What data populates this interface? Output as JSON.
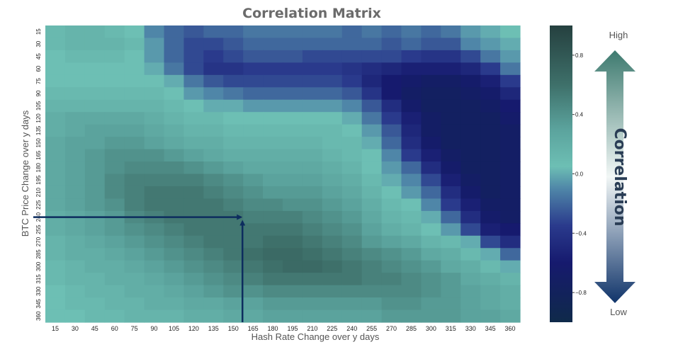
{
  "chart_data": {
    "type": "heatmap",
    "title": "Correlation Matrix",
    "xlabel": "Hash Rate Change over y days",
    "ylabel": "BTC Price Change over y days",
    "x_ticks": [
      15,
      30,
      45,
      60,
      75,
      90,
      105,
      120,
      135,
      150,
      165,
      180,
      195,
      210,
      225,
      240,
      255,
      270,
      285,
      300,
      315,
      330,
      345,
      360
    ],
    "y_ticks": [
      15,
      30,
      45,
      60,
      75,
      90,
      105,
      120,
      135,
      150,
      165,
      180,
      195,
      210,
      225,
      240,
      255,
      270,
      285,
      300,
      315,
      330,
      345,
      360
    ],
    "value_range": [
      -1,
      1
    ],
    "colorbar": {
      "label": "Correlation",
      "high_label": "High",
      "low_label": "Low",
      "ticks": [
        {
          "value": 0.8,
          "label": "0.8"
        },
        {
          "value": 0.4,
          "label": "0.4"
        },
        {
          "value": 0.0,
          "label": "0.0"
        },
        {
          "value": -0.4,
          "label": "−0.4"
        },
        {
          "value": -0.8,
          "label": "−0.8"
        }
      ],
      "stops": [
        {
          "value": -1.0,
          "color": "#0f2a4a"
        },
        {
          "value": -0.6,
          "color": "#161a6e"
        },
        {
          "value": -0.35,
          "color": "#2a3a8c"
        },
        {
          "value": -0.1,
          "color": "#4f86a8"
        },
        {
          "value": 0.05,
          "color": "#6dbfb4"
        },
        {
          "value": 0.3,
          "color": "#5ba39d"
        },
        {
          "value": 0.6,
          "color": "#3e706a"
        },
        {
          "value": 1.0,
          "color": "#25403f"
        }
      ]
    },
    "annotation": {
      "x": 157,
      "y": 240,
      "note": "arrows pointing to peak correlation"
    },
    "values": [
      [
        0.1,
        0.15,
        0.15,
        0.1,
        0.05,
        -0.1,
        -0.2,
        -0.25,
        -0.2,
        -0.2,
        -0.15,
        -0.15,
        -0.15,
        -0.15,
        -0.15,
        -0.2,
        -0.15,
        -0.2,
        -0.15,
        -0.2,
        -0.15,
        -0.05,
        0,
        0.05
      ],
      [
        0.1,
        0.15,
        0.15,
        0.15,
        0.1,
        -0.05,
        -0.2,
        -0.3,
        -0.3,
        -0.25,
        -0.2,
        -0.2,
        -0.2,
        -0.2,
        -0.2,
        -0.2,
        -0.2,
        -0.25,
        -0.2,
        -0.25,
        -0.25,
        -0.1,
        -0.05,
        0
      ],
      [
        0.05,
        0.1,
        0.1,
        0.1,
        0.05,
        -0.05,
        -0.2,
        -0.3,
        -0.35,
        -0.3,
        -0.25,
        -0.25,
        -0.25,
        -0.3,
        -0.3,
        -0.3,
        -0.3,
        -0.3,
        -0.35,
        -0.4,
        -0.4,
        -0.3,
        -0.15,
        -0.05
      ],
      [
        0.05,
        0.05,
        0.05,
        0.05,
        0.05,
        0,
        -0.15,
        -0.3,
        -0.4,
        -0.4,
        -0.35,
        -0.35,
        -0.35,
        -0.35,
        -0.35,
        -0.4,
        -0.45,
        -0.5,
        -0.55,
        -0.55,
        -0.55,
        -0.5,
        -0.35,
        -0.15
      ],
      [
        0.05,
        0.05,
        0.05,
        0.05,
        0.05,
        0.05,
        0,
        -0.15,
        -0.25,
        -0.3,
        -0.3,
        -0.3,
        -0.3,
        -0.3,
        -0.3,
        -0.35,
        -0.5,
        -0.6,
        -0.65,
        -0.7,
        -0.7,
        -0.65,
        -0.55,
        -0.35
      ],
      [
        0.1,
        0.1,
        0.1,
        0.1,
        0.1,
        0.1,
        0.05,
        -0.05,
        -0.1,
        -0.15,
        -0.2,
        -0.2,
        -0.2,
        -0.2,
        -0.2,
        -0.25,
        -0.4,
        -0.6,
        -0.7,
        -0.75,
        -0.75,
        -0.7,
        -0.65,
        -0.5
      ],
      [
        0.15,
        0.15,
        0.15,
        0.15,
        0.15,
        0.15,
        0.1,
        0.05,
        0,
        0,
        -0.05,
        -0.05,
        -0.05,
        -0.05,
        -0.05,
        -0.1,
        -0.25,
        -0.45,
        -0.65,
        -0.75,
        -0.75,
        -0.75,
        -0.7,
        -0.6
      ],
      [
        0.2,
        0.25,
        0.25,
        0.25,
        0.25,
        0.2,
        0.15,
        0.1,
        0.1,
        0.05,
        0.05,
        0.05,
        0.05,
        0.05,
        0.05,
        0,
        -0.15,
        -0.35,
        -0.55,
        -0.7,
        -0.75,
        -0.75,
        -0.75,
        -0.65
      ],
      [
        0.2,
        0.25,
        0.3,
        0.3,
        0.3,
        0.25,
        0.2,
        0.15,
        0.15,
        0.1,
        0.1,
        0.1,
        0.1,
        0.1,
        0.1,
        0.05,
        -0.05,
        -0.25,
        -0.5,
        -0.7,
        -0.75,
        -0.75,
        -0.75,
        -0.7
      ],
      [
        0.25,
        0.3,
        0.3,
        0.35,
        0.35,
        0.3,
        0.25,
        0.2,
        0.2,
        0.15,
        0.15,
        0.15,
        0.15,
        0.15,
        0.1,
        0.1,
        0,
        -0.2,
        -0.45,
        -0.65,
        -0.75,
        -0.75,
        -0.75,
        -0.7
      ],
      [
        0.25,
        0.3,
        0.35,
        0.4,
        0.4,
        0.4,
        0.35,
        0.3,
        0.25,
        0.2,
        0.2,
        0.2,
        0.2,
        0.2,
        0.15,
        0.1,
        0.05,
        -0.1,
        -0.35,
        -0.55,
        -0.7,
        -0.75,
        -0.75,
        -0.7
      ],
      [
        0.25,
        0.3,
        0.35,
        0.4,
        0.45,
        0.45,
        0.45,
        0.4,
        0.35,
        0.3,
        0.25,
        0.25,
        0.25,
        0.25,
        0.2,
        0.15,
        0.05,
        -0.05,
        -0.2,
        -0.45,
        -0.65,
        -0.75,
        -0.75,
        -0.7
      ],
      [
        0.25,
        0.3,
        0.35,
        0.45,
        0.5,
        0.5,
        0.5,
        0.5,
        0.45,
        0.4,
        0.35,
        0.3,
        0.3,
        0.3,
        0.25,
        0.2,
        0.1,
        0,
        -0.1,
        -0.3,
        -0.55,
        -0.7,
        -0.75,
        -0.7
      ],
      [
        0.25,
        0.3,
        0.35,
        0.45,
        0.5,
        0.55,
        0.55,
        0.55,
        0.5,
        0.45,
        0.4,
        0.35,
        0.35,
        0.35,
        0.3,
        0.25,
        0.15,
        0.05,
        -0.05,
        -0.2,
        -0.45,
        -0.65,
        -0.75,
        -0.7
      ],
      [
        0.25,
        0.3,
        0.35,
        0.4,
        0.5,
        0.55,
        0.55,
        0.55,
        0.55,
        0.5,
        0.45,
        0.45,
        0.4,
        0.4,
        0.35,
        0.3,
        0.2,
        0.1,
        0.05,
        -0.1,
        -0.35,
        -0.55,
        -0.7,
        -0.7
      ],
      [
        0.2,
        0.25,
        0.3,
        0.35,
        0.45,
        0.5,
        0.55,
        0.55,
        0.55,
        0.55,
        0.5,
        0.5,
        0.5,
        0.45,
        0.4,
        0.35,
        0.25,
        0.15,
        0.1,
        0,
        -0.2,
        -0.45,
        -0.65,
        -0.7
      ],
      [
        0.2,
        0.25,
        0.3,
        0.35,
        0.4,
        0.45,
        0.5,
        0.55,
        0.55,
        0.55,
        0.55,
        0.55,
        0.55,
        0.5,
        0.45,
        0.4,
        0.3,
        0.2,
        0.15,
        0.05,
        -0.05,
        -0.3,
        -0.55,
        -0.6
      ],
      [
        0.15,
        0.2,
        0.25,
        0.3,
        0.35,
        0.4,
        0.45,
        0.5,
        0.55,
        0.55,
        0.55,
        0.6,
        0.6,
        0.55,
        0.5,
        0.45,
        0.35,
        0.3,
        0.25,
        0.15,
        0.1,
        0,
        -0.3,
        -0.45
      ],
      [
        0.15,
        0.2,
        0.2,
        0.25,
        0.3,
        0.35,
        0.4,
        0.45,
        0.5,
        0.55,
        0.6,
        0.65,
        0.65,
        0.6,
        0.55,
        0.5,
        0.45,
        0.4,
        0.35,
        0.25,
        0.2,
        0.1,
        0,
        -0.2
      ],
      [
        0.1,
        0.15,
        0.2,
        0.2,
        0.25,
        0.3,
        0.35,
        0.4,
        0.45,
        0.5,
        0.55,
        0.6,
        0.65,
        0.65,
        0.6,
        0.55,
        0.5,
        0.45,
        0.4,
        0.35,
        0.25,
        0.2,
        0.1,
        0
      ],
      [
        0.1,
        0.15,
        0.15,
        0.2,
        0.2,
        0.25,
        0.3,
        0.35,
        0.4,
        0.45,
        0.5,
        0.55,
        0.55,
        0.55,
        0.55,
        0.55,
        0.5,
        0.5,
        0.45,
        0.4,
        0.35,
        0.25,
        0.2,
        0.15
      ],
      [
        0.05,
        0.1,
        0.15,
        0.15,
        0.2,
        0.2,
        0.25,
        0.3,
        0.35,
        0.4,
        0.4,
        0.45,
        0.45,
        0.45,
        0.45,
        0.45,
        0.45,
        0.45,
        0.45,
        0.4,
        0.35,
        0.3,
        0.25,
        0.2
      ],
      [
        0.05,
        0.1,
        0.1,
        0.15,
        0.15,
        0.2,
        0.2,
        0.25,
        0.25,
        0.3,
        0.3,
        0.35,
        0.35,
        0.35,
        0.35,
        0.35,
        0.35,
        0.4,
        0.4,
        0.35,
        0.35,
        0.3,
        0.25,
        0.2
      ],
      [
        0.05,
        0.05,
        0.1,
        0.1,
        0.15,
        0.15,
        0.15,
        0.2,
        0.2,
        0.25,
        0.25,
        0.3,
        0.3,
        0.3,
        0.3,
        0.3,
        0.3,
        0.35,
        0.35,
        0.35,
        0.35,
        0.3,
        0.3,
        0.25
      ]
    ]
  }
}
